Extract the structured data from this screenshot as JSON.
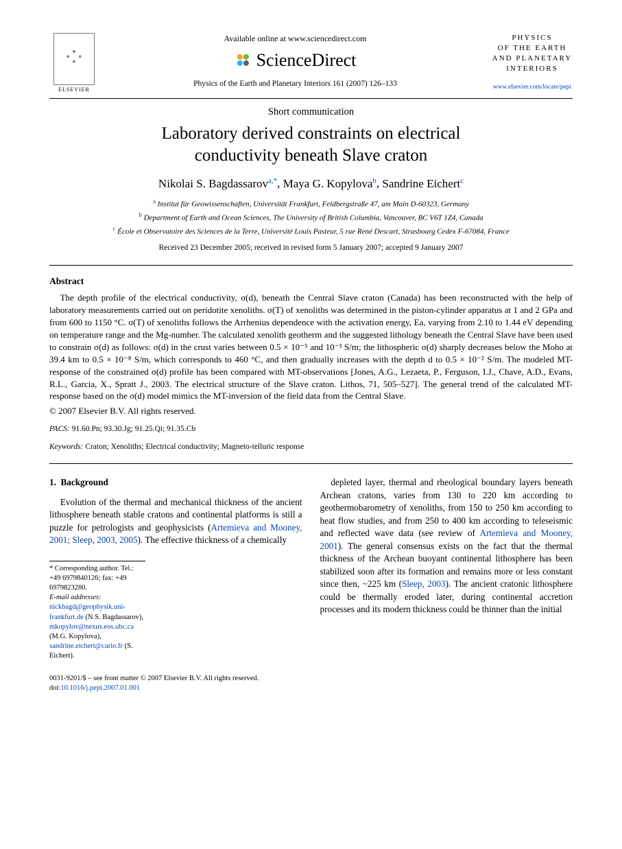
{
  "header": {
    "elsevier_label": "ELSEVIER",
    "available_online": "Available online at www.sciencedirect.com",
    "sd_brand": "ScienceDirect",
    "journal_ref": "Physics of the Earth and Planetary Interiors 161 (2007) 126–133",
    "journal_logo_lines": [
      "PHYSICS",
      "OF THE EARTH",
      "AND PLANETARY",
      "INTERIORS"
    ],
    "journal_link": "www.elsevier.com/locate/pepi"
  },
  "article": {
    "type": "Short communication",
    "title_line1": "Laboratory derived constraints on electrical",
    "title_line2": "conductivity beneath Slave craton",
    "authors": [
      {
        "name": "Nikolai S. Bagdassarov",
        "marks": "a,*"
      },
      {
        "name": "Maya G. Kopylova",
        "marks": "b"
      },
      {
        "name": "Sandrine Eichert",
        "marks": "c"
      }
    ],
    "affiliations": [
      {
        "tag": "a",
        "text": "Institut für Geowissenschaften, Universität Frankfurt, Feldbergstraße 47, am Main D-60323, Germany"
      },
      {
        "tag": "b",
        "text": "Department of Earth and Ocean Sciences, The University of British Columbia, Vancouver, BC V6T 1Z4, Canada"
      },
      {
        "tag": "c",
        "text": "École et Observatoire des Sciences de la Terre, Université Louis Pasteur, 5 rue René Descart, Strasbourg Cedex F-67084, France"
      }
    ],
    "dates": "Received 23 December 2005; received in revised form 5 January 2007; accepted 9 January 2007"
  },
  "abstract": {
    "heading": "Abstract",
    "body": "The depth profile of the electrical conductivity, σ(d), beneath the Central Slave craton (Canada) has been reconstructed with the help of laboratory measurements carried out on peridotite xenoliths. σ(T) of xenoliths was determined in the piston-cylinder apparatus at 1 and 2 GPa and from 600 to 1150 °C. σ(T) of xenoliths follows the Arrhenius dependence with the activation energy, Ea, varying from 2.10 to 1.44 eV depending on temperature range and the Mg-number. The calculated xenolith geotherm and the suggested lithology beneath the Central Slave have been used to constrain σ(d) as follows: σ(d) in the crust varies between 0.5 × 10⁻⁵ and 10⁻³ S/m; the lithospheric σ(d) sharply decreases below the Moho at 39.4 km to 0.5 × 10⁻⁸ S/m, which corresponds to 460 °C, and then gradually increases with the depth d to 0.5 × 10⁻² S/m. The modeled MT-response of the constrained σ(d) profile has been compared with MT-observations [Jones, A.G., Lezaeta, P., Ferguson, I.J., Chave, A.D., Evans, R.L., Garcia, X., Spratt J., 2003. The electrical structure of the Slave craton. Lithos, 71, 505–527]. The general trend of the calculated MT-response based on the σ(d) model mimics the MT-inversion of the field data from the Central Slave.",
    "copyright": "© 2007 Elsevier B.V. All rights reserved.",
    "pacs_label": "PACS:",
    "pacs": "91.60.Pn; 93.30.Jg; 91.25.Qi; 91.35.Cb",
    "keywords_label": "Keywords:",
    "keywords": "Craton; Xenoliths; Electrical conductivity; Magneto-telluric response"
  },
  "body": {
    "section_number": "1.",
    "section_title": "Background",
    "col1": "Evolution of the thermal and mechanical thickness of the ancient lithosphere beneath stable cratons and continental platforms is still a puzzle for petrologists and geophysicists (",
    "col1_link": "Artemieva and Mooney, 2001; Sleep, 2003, 2005",
    "col1_after": "). The effective thickness of a chemically",
    "col2_a": "depleted layer, thermal and rheological boundary layers beneath Archean cratons, varies from 130 to 220 km according to geothermobarometry of xenoliths, from 150 to 250 km according to heat flow studies, and from 250 to 400 km according to teleseismic and reflected wave data (see review of ",
    "col2_link1": "Artemieva and Mooney, 2001",
    "col2_b": "). The general consensus exists on the fact that the thermal thickness of the Archean buoyant continental lithosphere has been stabilized soon after its formation and remains more or less constant since then, ~225 km (",
    "col2_link2": "Sleep, 2003",
    "col2_c": "). The ancient cratonic lithosphere could be thermally eroded later, during continental accretion processes and its modern thickness could be thinner than the initial"
  },
  "footnotes": {
    "corr": "* Corresponding author. Tel.: +49 6979840126; fax: +49 6979823280.",
    "email_label": "E-mail addresses:",
    "emails": [
      {
        "addr": "nickbagd@geophysik.uni-frankfurt.de",
        "who": "(N.S. Bagdassarov)"
      },
      {
        "addr": "mkopylov@nexus.eos.ubc.ca",
        "who": "(M.G. Kopylova)"
      },
      {
        "addr": "sandrine.eichert@cario.fr",
        "who": "(S. Eichert)."
      }
    ]
  },
  "bottom": {
    "issn": "0031-9201/$ – see front matter © 2007 Elsevier B.V. All rights reserved.",
    "doi_label": "doi:",
    "doi": "10.1016/j.pepi.2007.01.001"
  },
  "colors": {
    "link": "#0645ad",
    "text": "#000000",
    "background": "#ffffff"
  }
}
